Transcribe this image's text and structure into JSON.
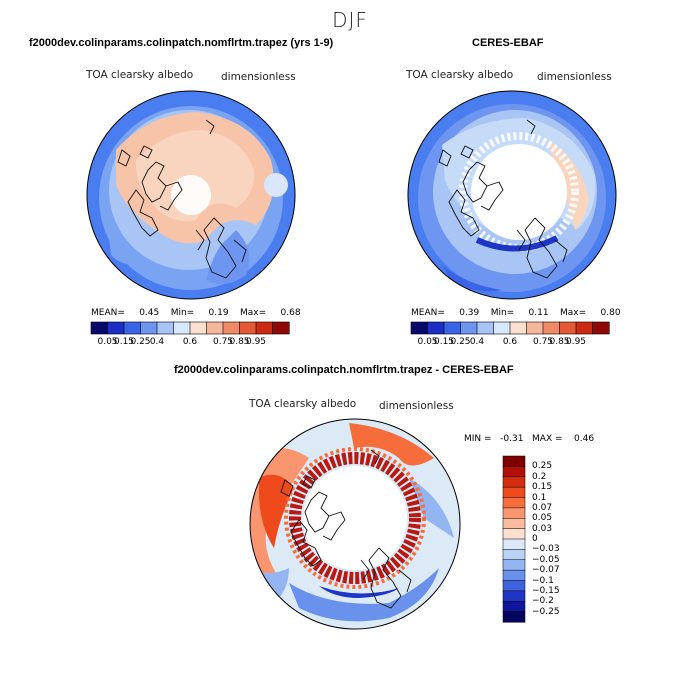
{
  "figure": {
    "season": "DJF"
  },
  "panels": [
    {
      "title": "f2000dev.colinparams.colinpatch.nomflrtm.trapez (yrs 1-9)",
      "variable": "TOA clearsky albedo",
      "units": "dimensionless",
      "stats": {
        "mean_label": "MEAN=",
        "mean": "0.45",
        "min_label": "Min=",
        "min": "0.19",
        "max_label": "Max=",
        "max": "0.68"
      }
    },
    {
      "title": "CERES-EBAF",
      "variable": "TOA clearsky albedo",
      "units": "dimensionless",
      "stats": {
        "mean_label": "MEAN=",
        "mean": "0.39",
        "min_label": "Min=",
        "min": "0.11",
        "max_label": "Max=",
        "max": "0.80"
      }
    },
    {
      "title": "f2000dev.colinparams.colinpatch.nomflrtm.trapez - CERES-EBAF",
      "variable": "TOA clearsky albedo",
      "units": "dimensionless",
      "stats": {
        "min_label": "MIN =",
        "min": "-0.31",
        "max_label": "MAX =",
        "max": "0.46"
      }
    }
  ],
  "colorbars": {
    "field": {
      "labels": [
        "0.05",
        "0.15",
        "0.25",
        "0.4",
        "0.6",
        "0.75",
        "0.85",
        "0.95"
      ],
      "colors": [
        "#08086b",
        "#1a2fc4",
        "#3b64e6",
        "#6e95f0",
        "#a8c4f6",
        "#d6e8fb",
        "#fbe1d1",
        "#f7b79c",
        "#f08a67",
        "#e55a36",
        "#cc2a14",
        "#8e0808"
      ]
    },
    "diff": {
      "labels": [
        "0.25",
        "0.2",
        "0.15",
        "0.1",
        "0.07",
        "0.05",
        "0.03",
        "0",
        "−0.03",
        "−0.05",
        "−0.07",
        "−0.1",
        "−0.15",
        "−0.2",
        "−0.25"
      ],
      "colors": [
        "#7f0000",
        "#b30f05",
        "#d42d0e",
        "#ee4a1c",
        "#f66d3c",
        "#f99670",
        "#fbbb9e",
        "#fde0cf",
        "#dceaf8",
        "#b9d3f6",
        "#93b5f2",
        "#6a91ec",
        "#3f62df",
        "#1f35c6",
        "#0f169c",
        "#05055e"
      ]
    }
  }
}
